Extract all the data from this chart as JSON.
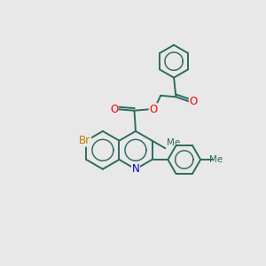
{
  "background_color": "#e8e8e8",
  "bond_color": "#2d6b5e",
  "bond_width": 1.4,
  "atom_colors": {
    "O": "#ff0000",
    "N": "#0000cc",
    "Br": "#cc7700"
  },
  "figsize": [
    3.0,
    3.0
  ],
  "dpi": 100
}
